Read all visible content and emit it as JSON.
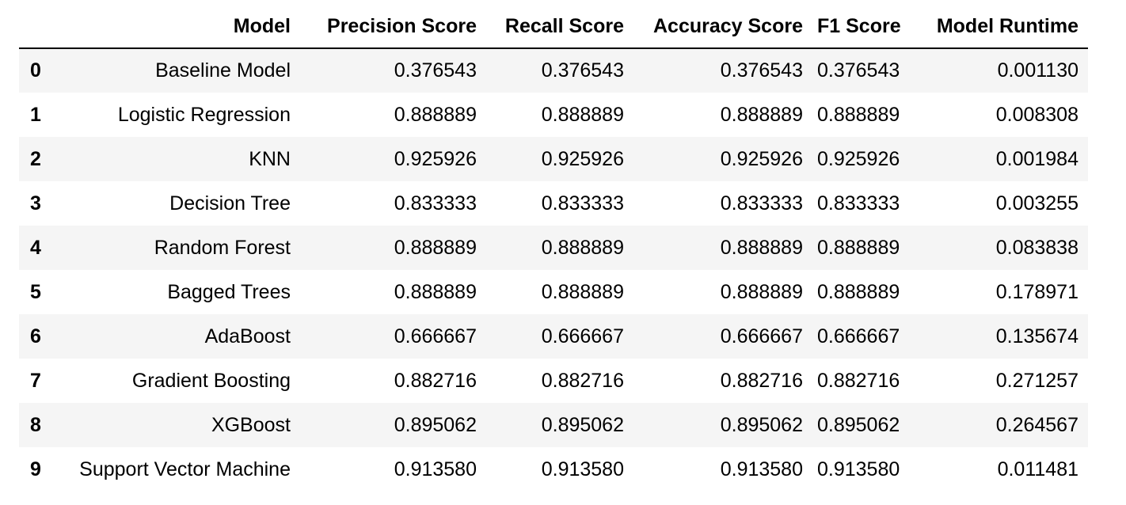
{
  "table": {
    "index_header": "",
    "columns": [
      "Model",
      "Precision Score",
      "Recall Score",
      "Accuracy Score",
      "F1 Score",
      "Model Runtime"
    ],
    "rows": [
      {
        "index": "0",
        "model": "Baseline Model",
        "precision": "0.376543",
        "recall": "0.376543",
        "accuracy": "0.376543",
        "f1": "0.376543",
        "runtime": "0.001130"
      },
      {
        "index": "1",
        "model": "Logistic Regression",
        "precision": "0.888889",
        "recall": "0.888889",
        "accuracy": "0.888889",
        "f1": "0.888889",
        "runtime": "0.008308"
      },
      {
        "index": "2",
        "model": "KNN",
        "precision": "0.925926",
        "recall": "0.925926",
        "accuracy": "0.925926",
        "f1": "0.925926",
        "runtime": "0.001984"
      },
      {
        "index": "3",
        "model": "Decision Tree",
        "precision": "0.833333",
        "recall": "0.833333",
        "accuracy": "0.833333",
        "f1": "0.833333",
        "runtime": "0.003255"
      },
      {
        "index": "4",
        "model": "Random Forest",
        "precision": "0.888889",
        "recall": "0.888889",
        "accuracy": "0.888889",
        "f1": "0.888889",
        "runtime": "0.083838"
      },
      {
        "index": "5",
        "model": "Bagged Trees",
        "precision": "0.888889",
        "recall": "0.888889",
        "accuracy": "0.888889",
        "f1": "0.888889",
        "runtime": "0.178971"
      },
      {
        "index": "6",
        "model": "AdaBoost",
        "precision": "0.666667",
        "recall": "0.666667",
        "accuracy": "0.666667",
        "f1": "0.666667",
        "runtime": "0.135674"
      },
      {
        "index": "7",
        "model": "Gradient Boosting",
        "precision": "0.882716",
        "recall": "0.882716",
        "accuracy": "0.882716",
        "f1": "0.882716",
        "runtime": "0.271257"
      },
      {
        "index": "8",
        "model": "XGBoost",
        "precision": "0.895062",
        "recall": "0.895062",
        "accuracy": "0.895062",
        "f1": "0.895062",
        "runtime": "0.264567"
      },
      {
        "index": "9",
        "model": "Support Vector Machine",
        "precision": "0.913580",
        "recall": "0.913580",
        "accuracy": "0.913580",
        "f1": "0.913580",
        "runtime": "0.011481"
      }
    ]
  },
  "colors": {
    "stripe": "#f5f5f5",
    "background": "#ffffff",
    "text": "#000000",
    "header_rule": "#000000"
  }
}
